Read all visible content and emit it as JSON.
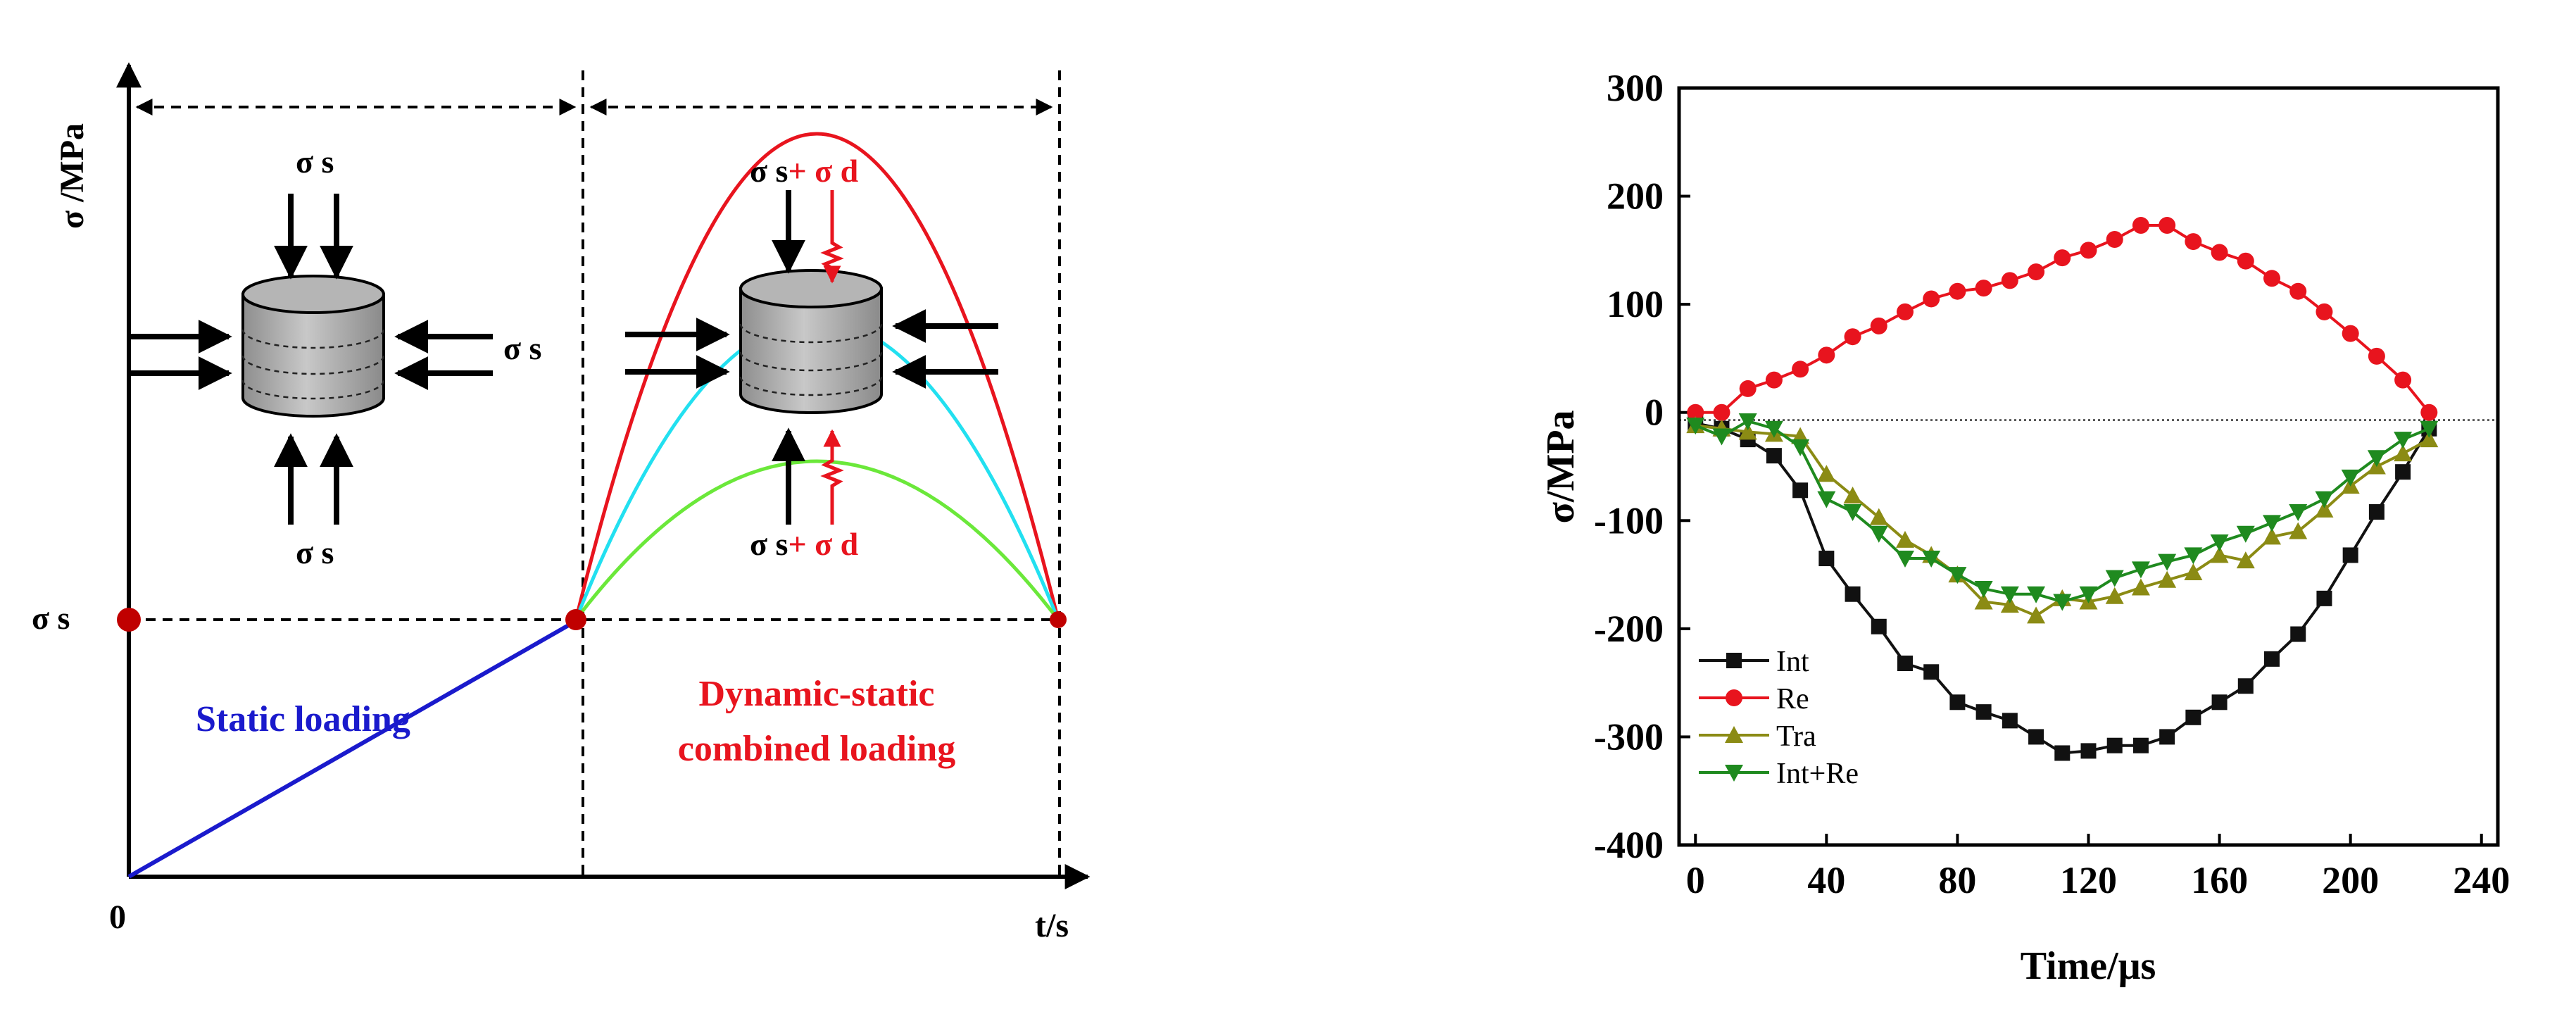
{
  "left_panel": {
    "y_axis_label": "σ /MPa",
    "x_axis_label": "t/s",
    "origin_label": "0",
    "sigma_s_axis": "σ s",
    "sigma_s_top": "σ s",
    "sigma_s_right": "σ s",
    "sigma_s_bottom": "σ s",
    "dyn_top_prefix": "σ s",
    "dyn_top_suffix": "+ σ d",
    "dyn_bottom_prefix": "σ s",
    "dyn_bottom_suffix": "+ σ d",
    "static_label": "Static loading",
    "dynamic_label_line1": "Dynamic-static",
    "dynamic_label_line2": "combined loading",
    "colors": {
      "static": "#1a1acc",
      "red_curve": "#e8141e",
      "cyan_curve": "#22e0f0",
      "green_curve": "#6be83a",
      "point": "#c00000",
      "dynamic_text": "#e8141e"
    }
  },
  "chart_data": {
    "type": "line",
    "title": "",
    "xlabel": "Time/μs",
    "ylabel": "σ/MPa",
    "xlim": [
      -5,
      245
    ],
    "ylim": [
      -400,
      300
    ],
    "xticks": [
      0,
      40,
      80,
      120,
      160,
      200,
      240
    ],
    "yticks": [
      -400,
      -300,
      -200,
      -100,
      0,
      100,
      200,
      300
    ],
    "reference_line_y": -7,
    "legend_position": "lower-left",
    "series": [
      {
        "name": "Int",
        "color": "#111111",
        "marker": "square",
        "x": [
          0,
          8,
          16,
          24,
          32,
          40,
          48,
          56,
          64,
          72,
          80,
          88,
          96,
          104,
          112,
          120,
          128,
          136,
          144,
          152,
          160,
          168,
          176,
          184,
          192,
          200,
          208,
          216,
          224
        ],
        "y": [
          -10,
          -15,
          -25,
          -40,
          -72,
          -135,
          -168,
          -198,
          -232,
          -240,
          -268,
          -277,
          -285,
          -300,
          -315,
          -313,
          -308,
          -308,
          -300,
          -282,
          -268,
          -253,
          -228,
          -205,
          -172,
          -132,
          -92,
          -55,
          -15
        ]
      },
      {
        "name": "Re",
        "color": "#e8141e",
        "marker": "circle",
        "x": [
          0,
          8,
          16,
          24,
          32,
          40,
          48,
          56,
          64,
          72,
          80,
          88,
          96,
          104,
          112,
          120,
          128,
          136,
          144,
          152,
          160,
          168,
          176,
          184,
          192,
          200,
          208,
          216,
          224
        ],
        "y": [
          0,
          0,
          22,
          30,
          40,
          53,
          70,
          80,
          93,
          105,
          112,
          115,
          122,
          130,
          143,
          150,
          160,
          173,
          173,
          158,
          148,
          140,
          124,
          112,
          93,
          73,
          52,
          30,
          0
        ]
      },
      {
        "name": "Tra",
        "color": "#8b8b14",
        "marker": "triangle-up",
        "x": [
          0,
          8,
          16,
          24,
          32,
          40,
          48,
          56,
          64,
          72,
          80,
          88,
          96,
          104,
          112,
          120,
          128,
          136,
          144,
          152,
          160,
          168,
          176,
          184,
          192,
          200,
          208,
          216,
          224
        ],
        "y": [
          -12,
          -15,
          -18,
          -20,
          -22,
          -57,
          -77,
          -97,
          -118,
          -132,
          -150,
          -175,
          -178,
          -188,
          -172,
          -175,
          -170,
          -162,
          -155,
          -148,
          -132,
          -137,
          -115,
          -110,
          -90,
          -68,
          -50,
          -38,
          -25
        ]
      },
      {
        "name": "Int+Re",
        "color": "#1f8a1f",
        "marker": "triangle-down",
        "x": [
          0,
          8,
          16,
          24,
          32,
          40,
          48,
          56,
          64,
          72,
          80,
          88,
          96,
          104,
          112,
          120,
          128,
          136,
          144,
          152,
          160,
          168,
          176,
          184,
          192,
          200,
          208,
          216,
          224
        ],
        "y": [
          -12,
          -22,
          -8,
          -15,
          -32,
          -80,
          -92,
          -112,
          -135,
          -135,
          -150,
          -163,
          -168,
          -168,
          -175,
          -168,
          -153,
          -145,
          -138,
          -132,
          -120,
          -112,
          -102,
          -92,
          -80,
          -60,
          -42,
          -25,
          -15
        ]
      }
    ]
  }
}
